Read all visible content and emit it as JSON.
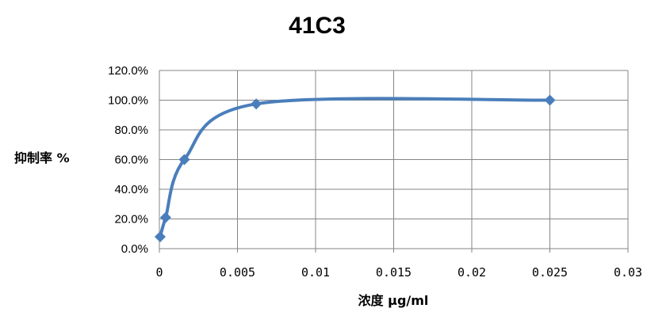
{
  "chart_data": {
    "type": "line",
    "title": "41C3",
    "xlabel": "浓度 μg/ml",
    "ylabel": "抑制率 %",
    "xlim": [
      0,
      0.03
    ],
    "ylim": [
      0,
      1.2
    ],
    "x_ticks": [
      "0",
      "0.005",
      "0.01",
      "0.015",
      "0.02",
      "0.025",
      "0.03"
    ],
    "y_ticks": [
      "0.0%",
      "20.0%",
      "40.0%",
      "60.0%",
      "80.0%",
      "100.0%",
      "120.0%"
    ],
    "grid": true,
    "smooth": true,
    "series": [
      {
        "x": [
          5e-05,
          0.0004,
          0.0016,
          0.0062,
          0.025
        ],
        "y": [
          0.08,
          0.21,
          0.6,
          0.975,
          1.0
        ],
        "color": "#4a7ebb",
        "marker": "diamond"
      }
    ]
  }
}
